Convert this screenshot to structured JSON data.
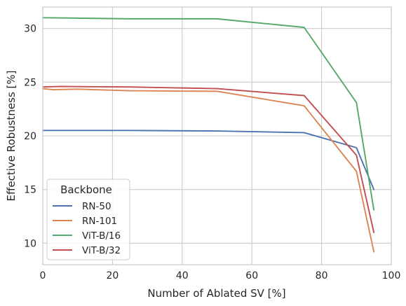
{
  "chart_data": {
    "type": "line",
    "xlabel": "Number of Ablated SV [%]",
    "ylabel": "Effective Robustness [%]",
    "xlim": [
      0,
      100
    ],
    "ylim": [
      8,
      32
    ],
    "xticks": [
      0,
      20,
      40,
      60,
      80,
      100
    ],
    "yticks": [
      10,
      15,
      20,
      25,
      30
    ],
    "grid": true,
    "legend": {
      "title": "Backbone",
      "placement": "lower-left"
    },
    "series": [
      {
        "name": "RN-50",
        "color": "#4c72b0",
        "x": [
          0,
          1,
          25,
          50,
          75,
          90,
          95
        ],
        "y": [
          20.5,
          20.5,
          20.5,
          20.45,
          20.3,
          18.9,
          15.0
        ]
      },
      {
        "name": "RN-101",
        "color": "#dd8452",
        "x": [
          0,
          3,
          10,
          25,
          50,
          75,
          90,
          95
        ],
        "y": [
          24.4,
          24.3,
          24.35,
          24.2,
          24.15,
          22.8,
          16.7,
          9.2
        ]
      },
      {
        "name": "ViT-B/16",
        "color": "#55a868",
        "x": [
          0,
          1,
          25,
          50,
          75,
          90,
          95
        ],
        "y": [
          31.0,
          31.0,
          30.9,
          30.9,
          30.1,
          23.1,
          13.1
        ]
      },
      {
        "name": "ViT-B/32",
        "color": "#c44e52",
        "x": [
          0,
          5,
          25,
          50,
          75,
          90,
          95
        ],
        "y": [
          24.55,
          24.6,
          24.55,
          24.4,
          23.75,
          18.2,
          11.0
        ]
      }
    ]
  }
}
